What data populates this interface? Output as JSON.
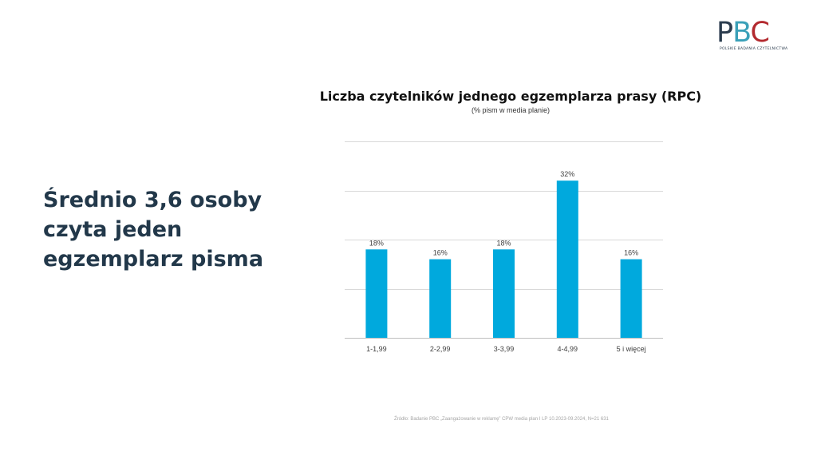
{
  "logo": {
    "letters": [
      "P",
      "B",
      "C"
    ],
    "tagline": "POLSKIE BADANIA CZYTELNICTWA"
  },
  "headline": "Średnio 3,6 osoby\nczyta jeden\negzemplarz pisma",
  "chart_data": {
    "type": "bar",
    "title": "Liczba czytelników jednego egzemplarza prasy (RPC)",
    "subtitle": "(% pism w media planie)",
    "categories": [
      "1-1,99",
      "2-2,99",
      "3-3,99",
      "4-4,99",
      "5 i więcej"
    ],
    "values": [
      18,
      16,
      18,
      32,
      16
    ],
    "value_labels": [
      "18%",
      "16%",
      "18%",
      "32%",
      "16%"
    ],
    "ylim": [
      0,
      40
    ],
    "gridlines": [
      0,
      10,
      20,
      30,
      40
    ],
    "grid": true,
    "legend": "none",
    "bar_color": "#00a9dd"
  },
  "source": "Źródło: Badanie PBC „Zaangażowanie w reklamę” CPW media plan I LP 10.2023-09.2024, N=21 631"
}
